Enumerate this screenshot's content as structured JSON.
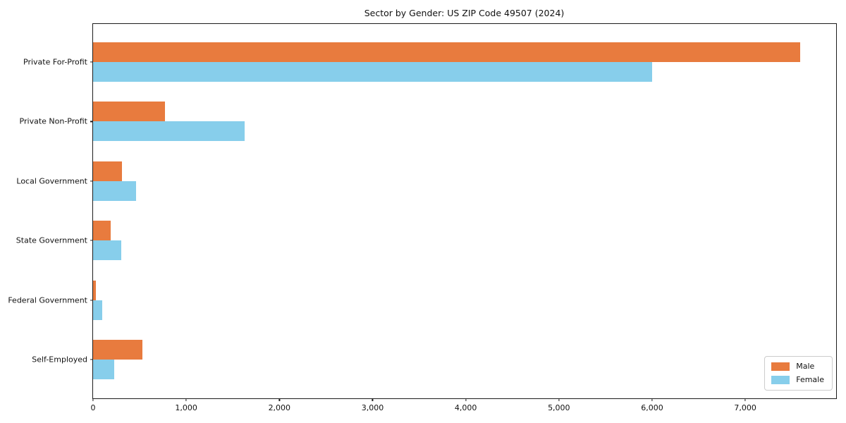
{
  "chart_data": {
    "type": "bar",
    "orientation": "horizontal",
    "title": "Sector by Gender: US ZIP Code 49507 (2024)",
    "categories": [
      "Private For-Profit",
      "Private Non-Profit",
      "Local Government",
      "State Government",
      "Federal Government",
      "Self-Employed"
    ],
    "series": [
      {
        "name": "Male",
        "color": "#e87b3e",
        "values": [
          7590,
          770,
          310,
          190,
          30,
          530
        ]
      },
      {
        "name": "Female",
        "color": "#87ceeb",
        "values": [
          6000,
          1630,
          460,
          300,
          100,
          225
        ]
      }
    ],
    "xlim": [
      0,
      7975
    ],
    "x_ticks": [
      0,
      1000,
      2000,
      3000,
      4000,
      5000,
      6000,
      7000
    ],
    "x_tick_labels": [
      "0",
      "1,000",
      "2,000",
      "3,000",
      "4,000",
      "5,000",
      "6,000",
      "7,000"
    ],
    "xlabel": "",
    "ylabel": "",
    "grid": false,
    "legend_position": "lower right",
    "axis_color": "#1c1c1c",
    "background_color": "#ffffff"
  }
}
